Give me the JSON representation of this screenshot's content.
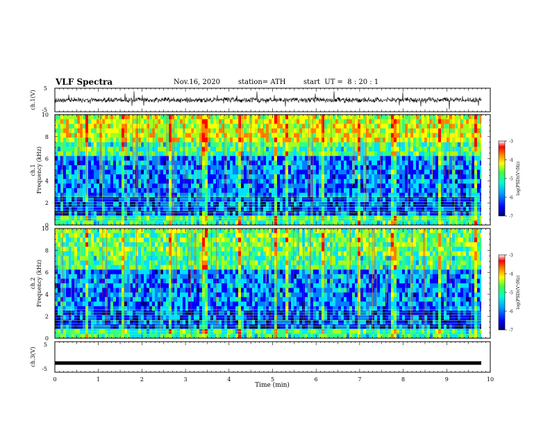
{
  "header": {
    "title": "VLF Spectra",
    "date": "Nov.16, 2020",
    "station": "station= ATH",
    "start": "start  UT =  8 : 20 : 1"
  },
  "chart_data": [
    {
      "type": "line",
      "id": "ch1_waveform",
      "ylabel": "ch.1(V)",
      "ylim": [
        -5,
        5
      ],
      "yticks": [
        "5",
        "-5"
      ],
      "xlim": [
        0,
        10
      ],
      "description_of_signal": "noisy waveform around 0 V"
    },
    {
      "type": "heatmap",
      "id": "ch1_spectrogram",
      "ylabel_line1": "ch.1",
      "ylabel_line2": "Frequency (kHz)",
      "ylim": [
        0,
        10
      ],
      "yticks": [
        "0",
        "2",
        "4",
        "6",
        "8",
        "10"
      ],
      "xlim": [
        0,
        10
      ],
      "colorbar": {
        "label": "log(PSD)(V²/Hz)",
        "range": [
          -7,
          -3
        ],
        "ticks": [
          "-3",
          "-4",
          "-5",
          "-6",
          "-7"
        ]
      }
    },
    {
      "type": "heatmap",
      "id": "ch2_spectrogram",
      "ylabel_line1": "ch.2",
      "ylabel_line2": "Frequency (kHz)",
      "ylim": [
        0,
        10
      ],
      "yticks": [
        "0",
        "2",
        "4",
        "6",
        "8",
        "10"
      ],
      "xlim": [
        0,
        10
      ],
      "colorbar": {
        "label": "log(PSD)(V²/Hz)",
        "range": [
          -7,
          -3
        ],
        "ticks": [
          "-3",
          "-4",
          "-5",
          "-6",
          "-7"
        ]
      }
    },
    {
      "type": "line",
      "id": "ch3_waveform",
      "ylabel": "ch.3(V)",
      "ylim": [
        -5,
        5
      ],
      "yticks": [
        "5",
        "-5"
      ],
      "xlim": [
        0,
        10
      ],
      "xlabel": "Time (min)",
      "xticks": [
        "0",
        "1",
        "2",
        "3",
        "4",
        "5",
        "6",
        "7",
        "8",
        "9",
        "10"
      ],
      "signal_level_v": -2
    }
  ],
  "colormap": [
    "#000070",
    "#0000ff",
    "#0080ff",
    "#00e0ff",
    "#30ff80",
    "#a0ff20",
    "#ffff00",
    "#ff8000",
    "#ff0000",
    "#ffffff"
  ]
}
